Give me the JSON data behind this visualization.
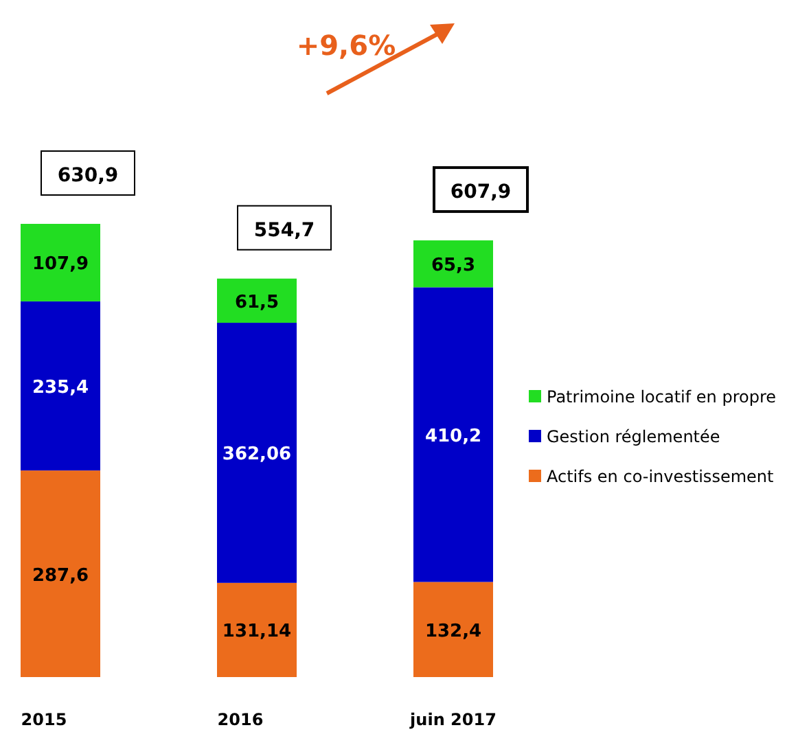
{
  "chart_data": {
    "type": "bar",
    "stacked": true,
    "categories": [
      "2015",
      "2016",
      "juin 2017"
    ],
    "series": [
      {
        "name": "Actifs en co-investissement",
        "color": "#ec6c1c",
        "values": [
          287.6,
          131.14,
          132.4
        ],
        "value_labels": [
          "287,6",
          "131,14",
          "132,4"
        ]
      },
      {
        "name": "Gestion réglementée",
        "color": "#0000c8",
        "values": [
          235.4,
          362.06,
          410.2
        ],
        "value_labels": [
          "235,4",
          "362,06",
          "410,2"
        ]
      },
      {
        "name": "Patrimoine locatif en propre",
        "color": "#22dd22",
        "values": [
          107.9,
          61.5,
          65.3
        ],
        "value_labels": [
          "107,9",
          "61,5",
          "65,3"
        ]
      }
    ],
    "totals": [
      "630,9",
      "554,7",
      "607,9"
    ],
    "annotations": [
      "+9,6%"
    ],
    "legend": "right"
  }
}
